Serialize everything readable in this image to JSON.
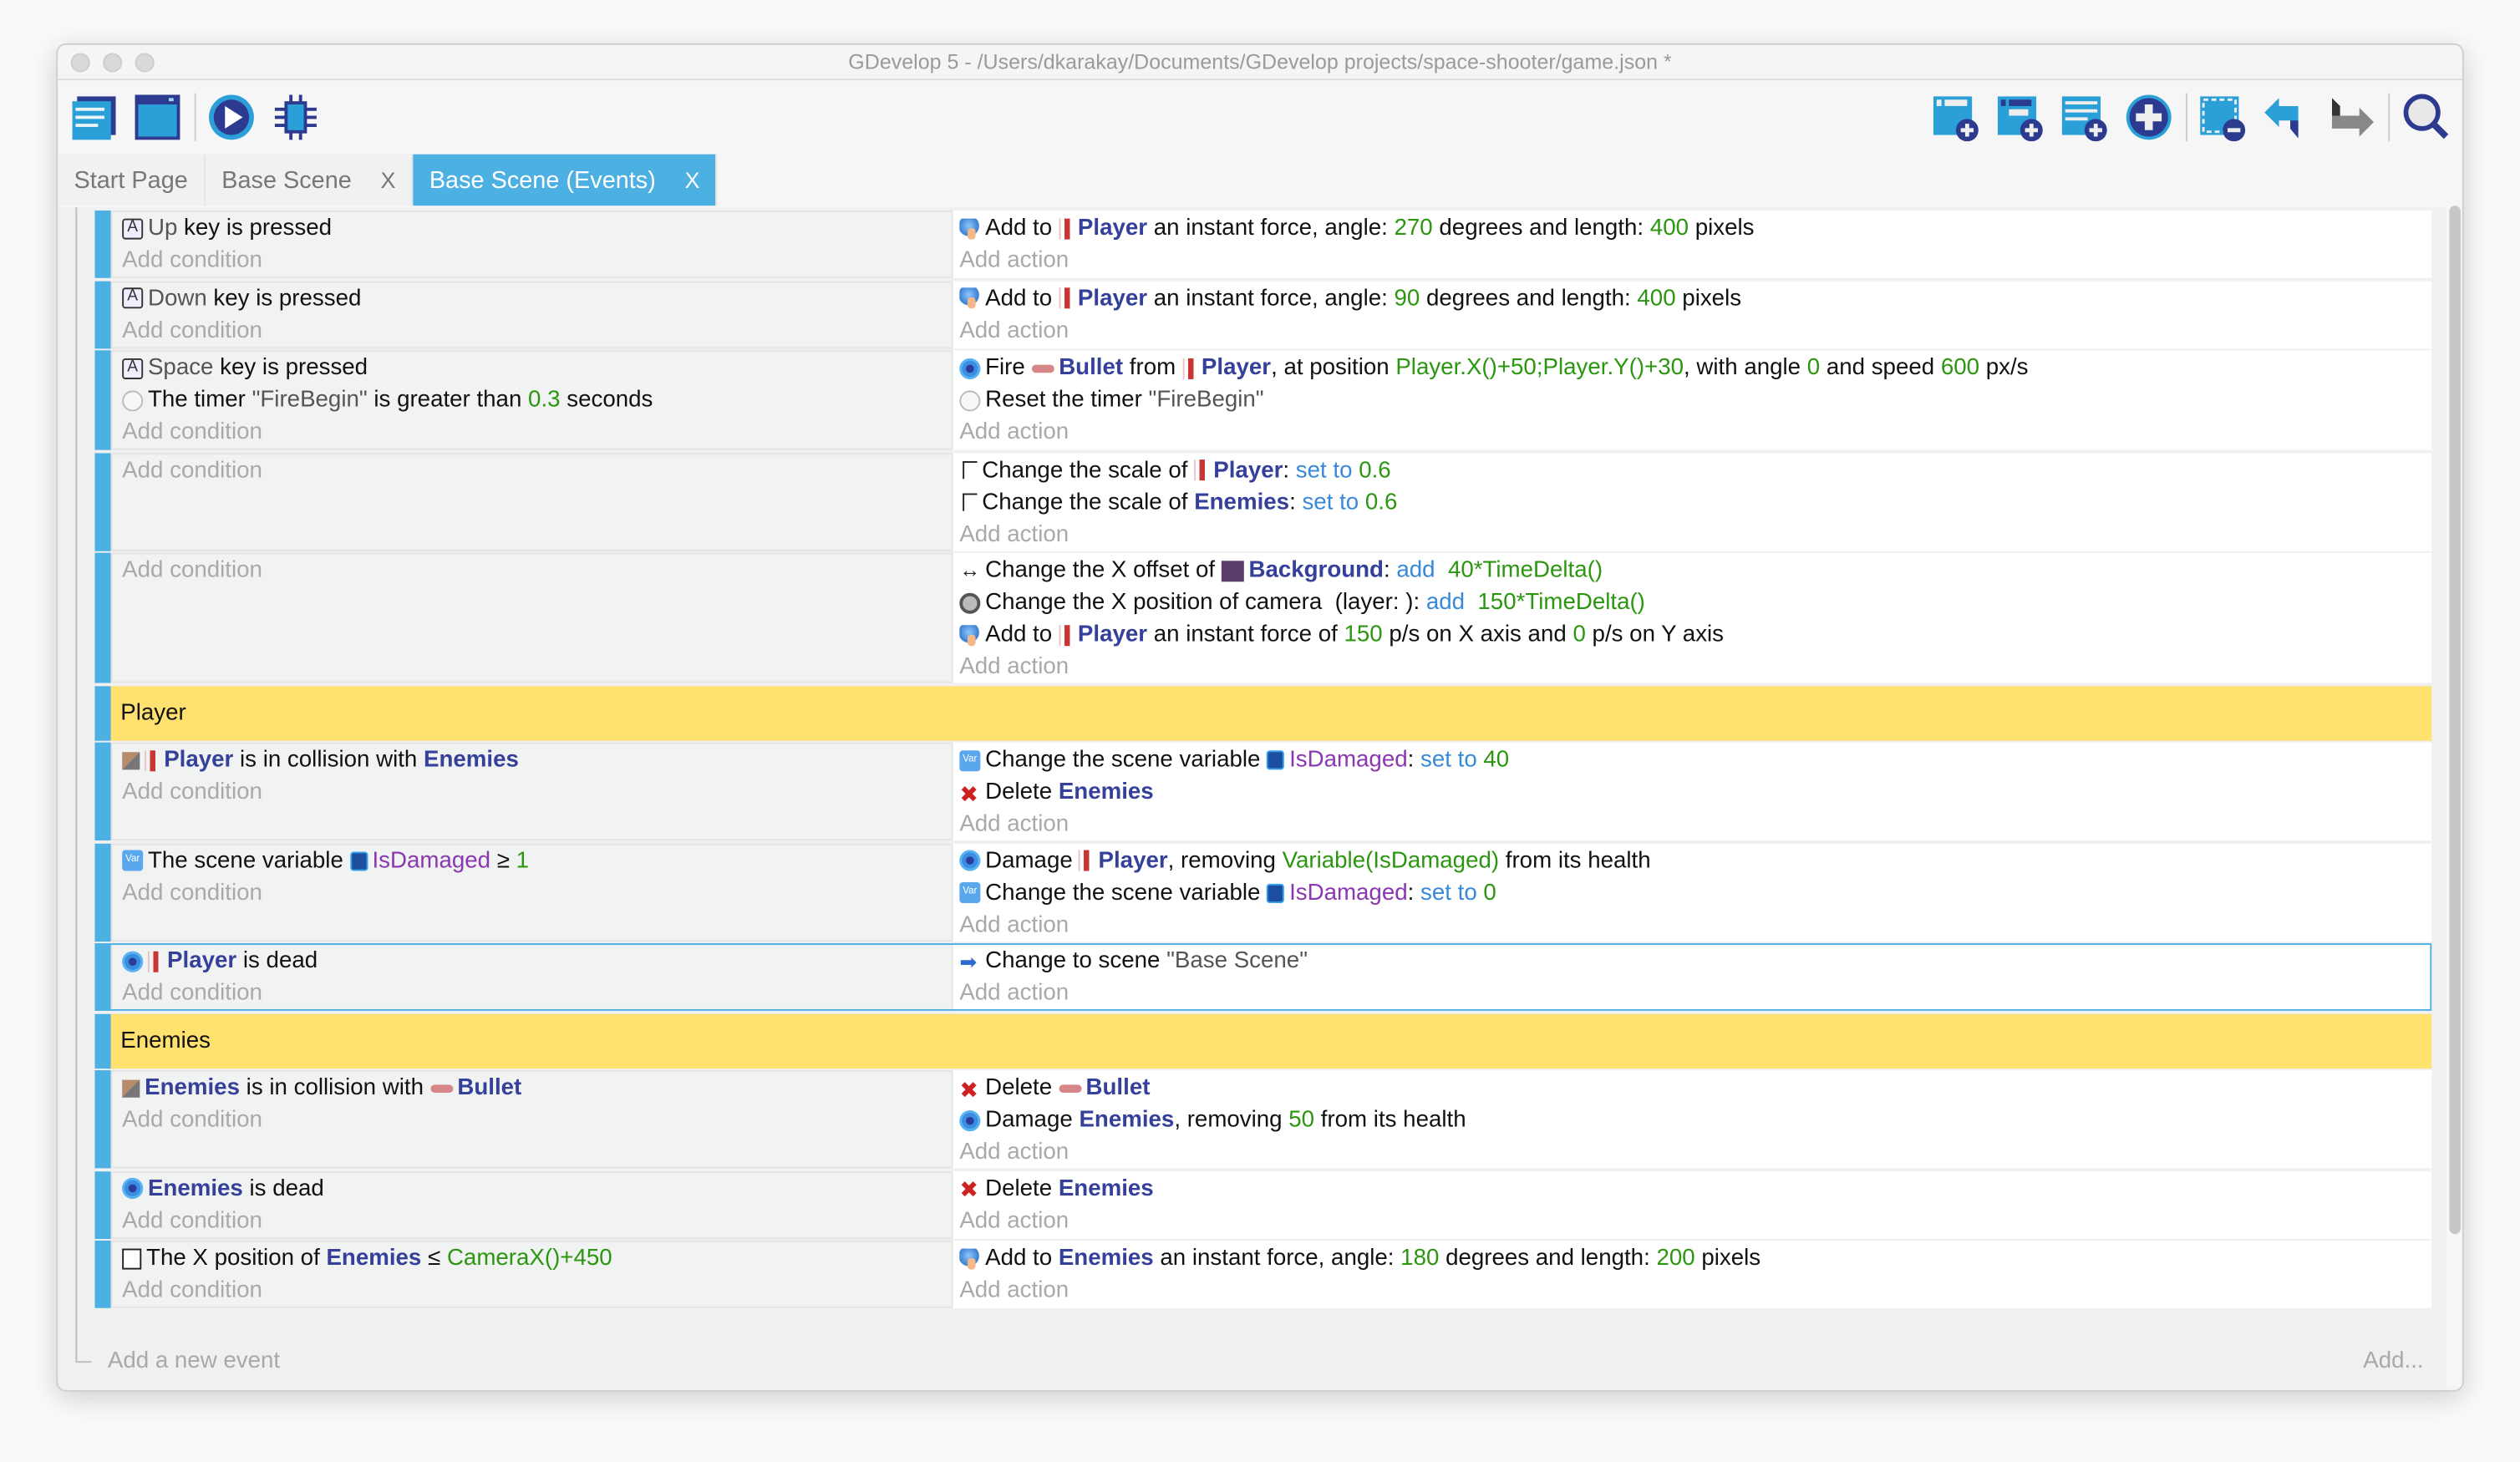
{
  "window": {
    "title": "GDevelop 5 - /Users/dkarakay/Documents/GDevelop projects/space-shooter/game.json *"
  },
  "toolbar": {
    "left": [
      "project-manager-icon",
      "scene-editor-icon",
      "preview-play-icon",
      "debugger-icon"
    ],
    "right": [
      "add-event-icon",
      "add-sub-event-icon",
      "add-comment-icon",
      "add-other-icon",
      "delete-selected-icon",
      "undo-icon",
      "redo-icon",
      "search-icon"
    ]
  },
  "tabs": [
    {
      "label": "Start Page",
      "closable": false,
      "active": false
    },
    {
      "label": "Base Scene",
      "closable": true,
      "active": false
    },
    {
      "label": "Base Scene (Events)",
      "closable": true,
      "active": true
    }
  ],
  "tab_close": "X",
  "add_condition": "Add condition",
  "add_action": "Add action",
  "add_event": "Add a new event",
  "add_more": "Add...",
  "colors": {
    "accent": "#4cb0e3",
    "group": "#ffe16f",
    "object": "#35409a",
    "number": "#2b960f",
    "operator": "#3889d8",
    "variable": "#8a37b0"
  },
  "events": [
    {
      "type": "standard",
      "conditions": [
        {
          "icon": "keyboard",
          "parts": [
            {
              "t": "Up",
              "k": "str"
            },
            {
              "t": " key is pressed"
            }
          ]
        }
      ],
      "actions": [
        {
          "icon": "force",
          "parts": [
            {
              "t": "Add to "
            },
            {
              "t": "",
              "k": "sprite"
            },
            {
              "t": "Player",
              "k": "obj"
            },
            {
              "t": " an instant force, angle: "
            },
            {
              "t": "270",
              "k": "num"
            },
            {
              "t": " degrees and length: "
            },
            {
              "t": "400",
              "k": "num"
            },
            {
              "t": " pixels"
            }
          ]
        }
      ]
    },
    {
      "type": "standard",
      "conditions": [
        {
          "icon": "keyboard",
          "parts": [
            {
              "t": "Down",
              "k": "str"
            },
            {
              "t": " key is pressed"
            }
          ]
        }
      ],
      "actions": [
        {
          "icon": "force",
          "parts": [
            {
              "t": "Add to "
            },
            {
              "t": "",
              "k": "sprite"
            },
            {
              "t": "Player",
              "k": "obj"
            },
            {
              "t": " an instant force, angle: "
            },
            {
              "t": "90",
              "k": "num"
            },
            {
              "t": " degrees and length: "
            },
            {
              "t": "400",
              "k": "num"
            },
            {
              "t": " pixels"
            }
          ]
        }
      ]
    },
    {
      "type": "standard",
      "conditions": [
        {
          "icon": "keyboard",
          "parts": [
            {
              "t": "Space",
              "k": "str"
            },
            {
              "t": " key is pressed"
            }
          ]
        },
        {
          "icon": "timer",
          "parts": [
            {
              "t": "The timer "
            },
            {
              "t": "\"FireBegin\"",
              "k": "str"
            },
            {
              "t": " is greater than "
            },
            {
              "t": "0.3",
              "k": "num"
            },
            {
              "t": " seconds"
            }
          ]
        }
      ],
      "actions": [
        {
          "icon": "gear",
          "parts": [
            {
              "t": "Fire "
            },
            {
              "t": "",
              "k": "bullet"
            },
            {
              "t": "Bullet",
              "k": "obj"
            },
            {
              "t": " from "
            },
            {
              "t": "",
              "k": "sprite"
            },
            {
              "t": "Player",
              "k": "obj"
            },
            {
              "t": ", at position "
            },
            {
              "t": "Player.X()+50;Player.Y()+30",
              "k": "num"
            },
            {
              "t": ", with angle "
            },
            {
              "t": "0",
              "k": "num"
            },
            {
              "t": " and speed "
            },
            {
              "t": "600",
              "k": "num"
            },
            {
              "t": " px/s"
            }
          ]
        },
        {
          "icon": "timer",
          "parts": [
            {
              "t": "Reset the timer "
            },
            {
              "t": "\"FireBegin\"",
              "k": "str"
            }
          ]
        }
      ]
    },
    {
      "type": "standard",
      "conditions": [],
      "actions": [
        {
          "icon": "scale",
          "parts": [
            {
              "t": "Change the scale of "
            },
            {
              "t": "",
              "k": "sprite"
            },
            {
              "t": "Player",
              "k": "obj"
            },
            {
              "t": ": "
            },
            {
              "t": "set to",
              "k": "op"
            },
            {
              "t": " 0.6",
              "k": "num"
            }
          ]
        },
        {
          "icon": "scale",
          "parts": [
            {
              "t": "Change the scale of "
            },
            {
              "t": "Enemies",
              "k": "obj"
            },
            {
              "t": ": "
            },
            {
              "t": "set to",
              "k": "op"
            },
            {
              "t": " 0.6",
              "k": "num"
            }
          ]
        }
      ]
    },
    {
      "type": "standard",
      "conditions": [],
      "actions": [
        {
          "icon": "offset",
          "parts": [
            {
              "t": "Change the X offset of "
            },
            {
              "t": "",
              "k": "bg"
            },
            {
              "t": "Background",
              "k": "obj"
            },
            {
              "t": ": "
            },
            {
              "t": "add",
              "k": "op"
            },
            {
              "t": "  40*TimeDelta()",
              "k": "num"
            }
          ]
        },
        {
          "icon": "camera",
          "parts": [
            {
              "t": "Change the X position of camera  (layer: ): "
            },
            {
              "t": "add",
              "k": "op"
            },
            {
              "t": "  150*TimeDelta()",
              "k": "num"
            }
          ]
        },
        {
          "icon": "force",
          "parts": [
            {
              "t": "Add to "
            },
            {
              "t": "",
              "k": "sprite"
            },
            {
              "t": "Player",
              "k": "obj"
            },
            {
              "t": " an instant force of "
            },
            {
              "t": "150",
              "k": "num"
            },
            {
              "t": " p/s on X axis and "
            },
            {
              "t": "0",
              "k": "num"
            },
            {
              "t": " p/s on Y axis"
            }
          ]
        }
      ]
    },
    {
      "type": "group",
      "title": "Player"
    },
    {
      "type": "standard",
      "conditions": [
        {
          "icon": "collision",
          "parts": [
            {
              "t": "",
              "k": "sprite"
            },
            {
              "t": "Player",
              "k": "obj"
            },
            {
              "t": " is in collision with "
            },
            {
              "t": "Enemies",
              "k": "obj"
            }
          ]
        }
      ],
      "actions": [
        {
          "icon": "var",
          "parts": [
            {
              "t": "Change the scene variable "
            },
            {
              "t": "",
              "k": "varref"
            },
            {
              "t": "IsDamaged",
              "k": "var"
            },
            {
              "t": ": "
            },
            {
              "t": "set to",
              "k": "op"
            },
            {
              "t": " 40",
              "k": "num"
            }
          ]
        },
        {
          "icon": "delete",
          "parts": [
            {
              "t": "Delete "
            },
            {
              "t": "Enemies",
              "k": "obj"
            }
          ]
        }
      ]
    },
    {
      "type": "standard",
      "conditions": [
        {
          "icon": "var",
          "parts": [
            {
              "t": "The scene variable "
            },
            {
              "t": "",
              "k": "varref"
            },
            {
              "t": "IsDamaged",
              "k": "var"
            },
            {
              "t": " ≥ "
            },
            {
              "t": "1",
              "k": "num"
            }
          ]
        }
      ],
      "actions": [
        {
          "icon": "gear",
          "parts": [
            {
              "t": "Damage "
            },
            {
              "t": "",
              "k": "sprite"
            },
            {
              "t": "Player",
              "k": "obj"
            },
            {
              "t": ", removing "
            },
            {
              "t": "Variable(IsDamaged)",
              "k": "num"
            },
            {
              "t": " from its health"
            }
          ]
        },
        {
          "icon": "var",
          "parts": [
            {
              "t": "Change the scene variable "
            },
            {
              "t": "",
              "k": "varref"
            },
            {
              "t": "IsDamaged",
              "k": "var"
            },
            {
              "t": ": "
            },
            {
              "t": "set to",
              "k": "op"
            },
            {
              "t": " 0",
              "k": "num"
            }
          ]
        }
      ]
    },
    {
      "type": "standard",
      "selected": true,
      "conditions": [
        {
          "icon": "gear",
          "parts": [
            {
              "t": "",
              "k": "sprite"
            },
            {
              "t": "Player",
              "k": "obj"
            },
            {
              "t": " is dead"
            }
          ]
        }
      ],
      "actions": [
        {
          "icon": "scene",
          "parts": [
            {
              "t": "Change to scene "
            },
            {
              "t": "\"Base Scene\"",
              "k": "str"
            }
          ]
        }
      ]
    },
    {
      "type": "group",
      "title": "Enemies"
    },
    {
      "type": "standard",
      "conditions": [
        {
          "icon": "collision",
          "parts": [
            {
              "t": "Enemies",
              "k": "obj"
            },
            {
              "t": " is in collision with "
            },
            {
              "t": "",
              "k": "bullet"
            },
            {
              "t": "Bullet",
              "k": "obj"
            }
          ]
        }
      ],
      "actions": [
        {
          "icon": "delete",
          "parts": [
            {
              "t": "Delete "
            },
            {
              "t": "",
              "k": "bullet"
            },
            {
              "t": "Bullet",
              "k": "obj"
            }
          ]
        },
        {
          "icon": "gear",
          "parts": [
            {
              "t": "Damage "
            },
            {
              "t": "Enemies",
              "k": "obj"
            },
            {
              "t": ", removing "
            },
            {
              "t": "50",
              "k": "num"
            },
            {
              "t": " from its health"
            }
          ]
        }
      ]
    },
    {
      "type": "standard",
      "conditions": [
        {
          "icon": "gear",
          "parts": [
            {
              "t": "Enemies",
              "k": "obj"
            },
            {
              "t": " is dead"
            }
          ]
        }
      ],
      "actions": [
        {
          "icon": "delete",
          "parts": [
            {
              "t": "Delete "
            },
            {
              "t": "Enemies",
              "k": "obj"
            }
          ]
        }
      ]
    },
    {
      "type": "standard",
      "conditions": [
        {
          "icon": "position",
          "parts": [
            {
              "t": "The X position of "
            },
            {
              "t": "Enemies",
              "k": "obj"
            },
            {
              "t": " ≤ "
            },
            {
              "t": "CameraX()+450",
              "k": "num"
            }
          ]
        }
      ],
      "actions": [
        {
          "icon": "force",
          "parts": [
            {
              "t": "Add to "
            },
            {
              "t": "Enemies",
              "k": "obj"
            },
            {
              "t": " an instant force, angle: "
            },
            {
              "t": "180",
              "k": "num"
            },
            {
              "t": " degrees and length: "
            },
            {
              "t": "200",
              "k": "num"
            },
            {
              "t": " pixels"
            }
          ]
        }
      ]
    }
  ]
}
